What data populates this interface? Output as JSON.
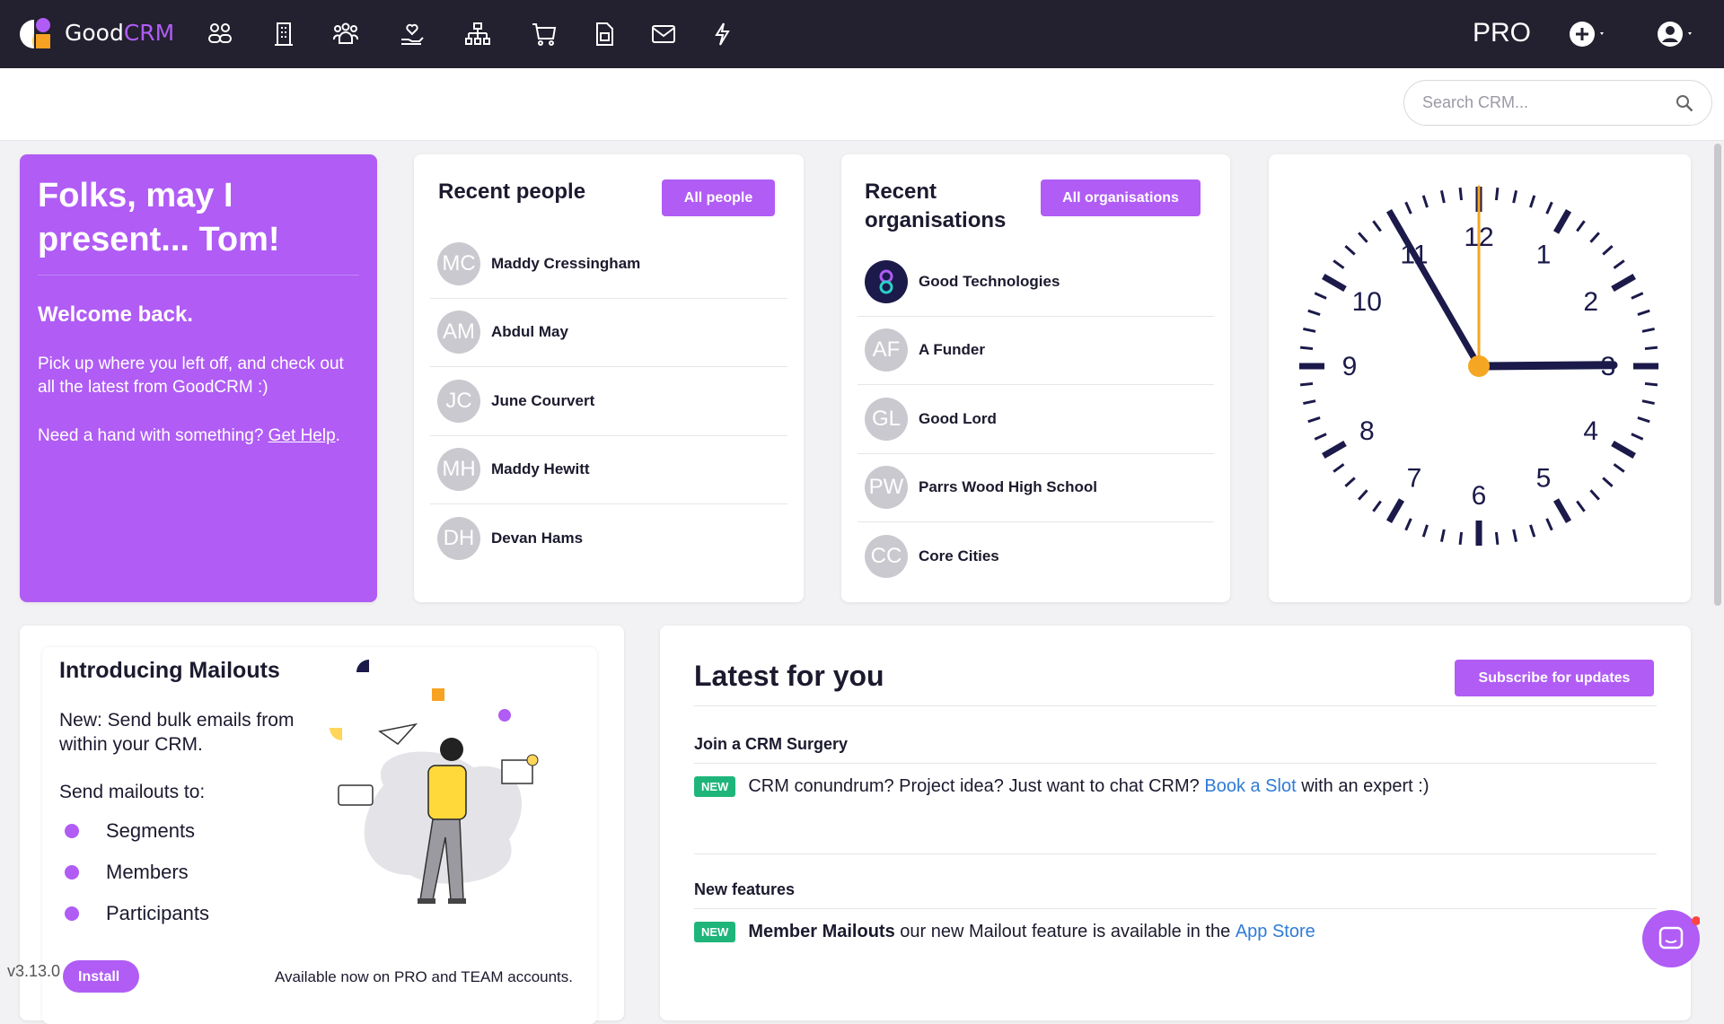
{
  "nav": {
    "brand_good": "Good",
    "brand_crm": "CRM",
    "plan": "PRO",
    "icons": [
      "people-icon",
      "building-icon",
      "groups-icon",
      "donation-icon",
      "hierarchy-icon",
      "cart-icon",
      "invoice-icon",
      "mail-icon",
      "lightning-icon"
    ]
  },
  "search": {
    "placeholder": "Search CRM..."
  },
  "welcome": {
    "title": "Folks, may I present... Tom!",
    "subtitle": "Welcome back.",
    "body": "Pick up where you left off, and check out all the latest from GoodCRM :)",
    "help_prefix": "Need a hand with something? ",
    "help_link": "Get Help",
    "help_suffix": "."
  },
  "people": {
    "title": "Recent people",
    "button": "All people",
    "items": [
      {
        "initials": "MC",
        "name": "Maddy Cressingham"
      },
      {
        "initials": "AM",
        "name": "Abdul May"
      },
      {
        "initials": "JC",
        "name": "June Courvert"
      },
      {
        "initials": "MH",
        "name": "Maddy Hewitt"
      },
      {
        "initials": "DH",
        "name": "Devan Hams"
      }
    ]
  },
  "orgs": {
    "title": "Recent organisations",
    "button": "All organisations",
    "items": [
      {
        "initials": "",
        "name": "Good Technologies"
      },
      {
        "initials": "AF",
        "name": "A Funder"
      },
      {
        "initials": "GL",
        "name": "Good Lord"
      },
      {
        "initials": "PW",
        "name": "Parrs Wood High School"
      },
      {
        "initials": "CC",
        "name": "Core Cities"
      }
    ]
  },
  "clock": {
    "hour": 2,
    "minute": 55,
    "second": 0,
    "numerals": [
      "12",
      "1",
      "2",
      "3",
      "4",
      "5",
      "6",
      "7",
      "8",
      "9",
      "10",
      "11"
    ]
  },
  "mailouts": {
    "title": "Introducing Mailouts",
    "intro": "New: Send bulk emails from within your CRM.",
    "send_to": "Send mailouts to:",
    "items": [
      "Segments",
      "Members",
      "Participants"
    ],
    "footer": "Available now on PRO and TEAM accounts."
  },
  "latest": {
    "title": "Latest for you",
    "button": "Subscribe for updates",
    "surgery": {
      "heading": "Join a CRM Surgery",
      "badge": "NEW",
      "text": "CRM conundrum? Project idea? Just want to chat CRM?",
      "link": "Book a Slot",
      "suffix": "with an expert :)"
    },
    "features": {
      "heading": "New features",
      "badge": "NEW",
      "bold": "Member Mailouts",
      "text": "our new Mailout feature is available in the",
      "link": "App Store"
    }
  },
  "footer": {
    "version": "v3.13.0",
    "install": "Install"
  },
  "colors": {
    "accent": "#b05cf5",
    "nav": "#23202f",
    "new_badge": "#1fb57a",
    "link": "#2f7bd6",
    "clock_second": "#f5a623"
  }
}
